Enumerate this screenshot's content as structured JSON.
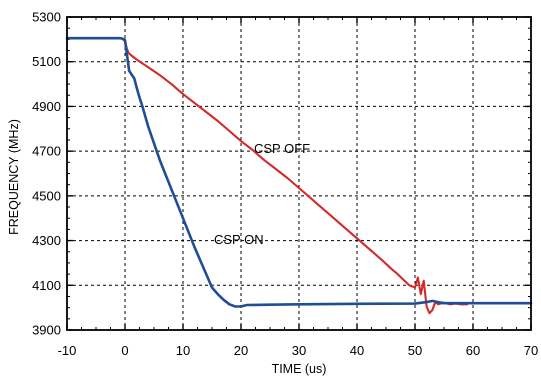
{
  "chart_data": {
    "type": "line",
    "title": "",
    "xlabel": "TIME (us)",
    "ylabel": "FREQUENCY (MHz)",
    "xlim": [
      -10,
      70
    ],
    "ylim": [
      3900,
      5300
    ],
    "xticks": [
      -10,
      0,
      10,
      20,
      30,
      40,
      50,
      60,
      70
    ],
    "yticks": [
      3900,
      4100,
      4300,
      4500,
      4700,
      4900,
      5100,
      5300
    ],
    "xtick_labels": [
      "-10",
      "0",
      "10",
      "20",
      "30",
      "40",
      "50",
      "60",
      "70"
    ],
    "ytick_labels": [
      "3900",
      "4100",
      "4300",
      "4500",
      "4700",
      "4900",
      "5100",
      "5300"
    ],
    "grid": true,
    "colors": {
      "csp_off": "#d42a2a",
      "csp_on": "#1f4e96"
    },
    "annotations": {
      "csp_off": "CSP OFF",
      "csp_on": "CSP ON"
    },
    "series": [
      {
        "name": "CSP OFF",
        "x": [
          -10,
          -1,
          -0.5,
          0,
          0.3,
          0.6,
          1,
          2,
          4,
          6,
          8,
          10,
          12,
          14,
          16,
          18,
          20,
          22,
          24,
          26,
          28,
          30,
          32,
          34,
          36,
          38,
          40,
          42,
          44,
          46,
          47,
          48,
          49,
          50,
          50.5,
          51,
          51.5,
          52,
          52.5,
          53,
          53.5,
          54,
          55,
          56,
          57,
          58,
          59
        ],
        "y": [
          5205,
          5205,
          5204,
          5200,
          5160,
          5140,
          5130,
          5110,
          5075,
          5040,
          5000,
          4955,
          4915,
          4875,
          4835,
          4790,
          4745,
          4705,
          4660,
          4620,
          4580,
          4535,
          4490,
          4445,
          4400,
          4355,
          4310,
          4265,
          4220,
          4172,
          4150,
          4125,
          4100,
          4090,
          4135,
          4060,
          4120,
          4005,
          3975,
          3990,
          4025,
          4015,
          4022,
          4015,
          4018,
          4015,
          4015
        ]
      },
      {
        "name": "CSP ON",
        "x": [
          -10,
          -1,
          -0.5,
          0,
          0.3,
          0.7,
          1.2,
          1.6,
          2,
          2.5,
          3,
          3.5,
          4,
          5,
          6,
          8,
          10,
          12,
          14,
          15,
          16,
          17,
          18,
          19,
          20,
          21,
          25,
          30,
          40,
          50,
          52,
          53,
          54,
          55,
          60,
          70
        ],
        "y": [
          5205,
          5205,
          5204,
          5195,
          5140,
          5060,
          5040,
          5025,
          4985,
          4940,
          4900,
          4855,
          4810,
          4735,
          4660,
          4530,
          4400,
          4270,
          4150,
          4090,
          4060,
          4035,
          4015,
          4005,
          4005,
          4012,
          4013,
          4015,
          4017,
          4018,
          4025,
          4030,
          4025,
          4020,
          4020,
          4020
        ]
      }
    ]
  }
}
